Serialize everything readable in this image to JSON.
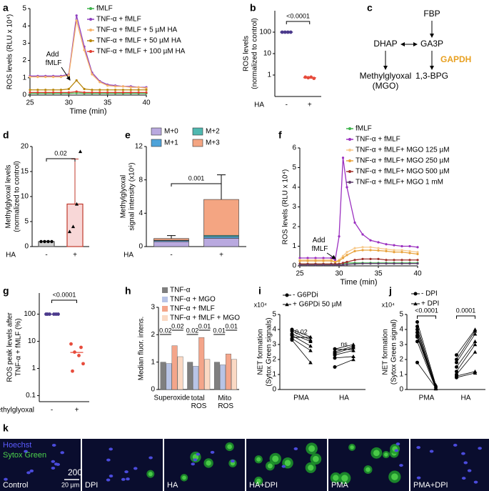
{
  "chart_data": [
    {
      "panel": "a",
      "type": "line",
      "xlabel": "Time (min)",
      "ylabel": [
        "ROS levels (RLU x 10⁴)"
      ],
      "xlim": [
        25,
        40
      ],
      "xticks": [
        25,
        30,
        35,
        40
      ],
      "ylim": [
        0,
        5
      ],
      "yticks": [
        0,
        1,
        2,
        3,
        4,
        5
      ],
      "x": [
        25,
        26,
        27,
        28,
        29,
        30,
        31,
        32,
        33,
        34,
        35,
        36,
        37,
        38,
        39,
        40
      ],
      "series": [
        {
          "name": "fMLF",
          "color": "#3cb44b",
          "values": [
            0.1,
            0.1,
            0.1,
            0.1,
            0.1,
            0.1,
            0.12,
            0.1,
            0.1,
            0.1,
            0.1,
            0.1,
            0.1,
            0.1,
            0.1,
            0.1
          ]
        },
        {
          "name": "TNF-α + fMLF",
          "color": "#8e3fbf",
          "values": [
            1.1,
            1.1,
            1.1,
            1.1,
            1.1,
            1.2,
            4.6,
            2.8,
            1.3,
            0.8,
            0.6,
            0.55,
            0.5,
            0.5,
            0.45,
            0.45
          ]
        },
        {
          "name": "TNF-α + fMLF + 5 µM HA",
          "color": "#f7b267",
          "values": [
            1.05,
            1.05,
            1.05,
            1.05,
            1.05,
            1.15,
            4.3,
            2.6,
            1.2,
            0.75,
            0.55,
            0.5,
            0.5,
            0.45,
            0.45,
            0.4
          ]
        },
        {
          "name": "TNF-α + fMLF + 50 µM HA",
          "color": "#b8860b",
          "values": [
            0.3,
            0.3,
            0.3,
            0.3,
            0.3,
            0.35,
            0.85,
            0.35,
            0.3,
            0.3,
            0.3,
            0.3,
            0.3,
            0.3,
            0.3,
            0.3
          ]
        },
        {
          "name": "TNF-α + fMLF + 100 µM HA",
          "color": "#e03c31",
          "values": [
            0.15,
            0.15,
            0.15,
            0.15,
            0.15,
            0.15,
            0.2,
            0.15,
            0.15,
            0.15,
            0.15,
            0.15,
            0.15,
            0.15,
            0.15,
            0.15
          ]
        }
      ],
      "annotation": "Add fMLF"
    },
    {
      "panel": "b",
      "type": "dot",
      "ylabel": [
        "ROS levels",
        "(normalized to control)"
      ],
      "xlabel": "HA",
      "categories": [
        "-",
        "+"
      ],
      "log_y": true,
      "ylim": [
        0.1,
        1000
      ],
      "yticks": [
        1,
        10,
        100
      ],
      "values": [
        [
          100,
          100,
          100,
          100
        ],
        [
          0.8,
          0.75,
          0.8,
          0.7
        ]
      ],
      "means": [
        100,
        0.75
      ],
      "colors": [
        "#4b3a8c",
        "#e74c3c"
      ],
      "annotation": "<0.0001"
    },
    {
      "panel": "d",
      "type": "bar",
      "ylabel": [
        "Methylglyoxal levels",
        "(normalized to control)"
      ],
      "xlabel": "HA",
      "categories": [
        "-",
        "+"
      ],
      "ylim": [
        0,
        20
      ],
      "yticks": [
        0,
        5,
        10,
        15,
        20
      ],
      "values": [
        1,
        8.5
      ],
      "errors": [
        0.1,
        9
      ],
      "points": [
        [
          1,
          1,
          1,
          1
        ],
        [
          3,
          4,
          8.5,
          19
        ]
      ],
      "colors": [
        "#d0d0d0",
        "#f8d7d7"
      ],
      "edge_colors": [
        "#555555",
        "#c0392b"
      ],
      "markers": [
        "circle",
        "triangle"
      ],
      "annotation": "0.02"
    },
    {
      "panel": "e",
      "type": "stacked_bar",
      "ylabel": [
        "Methylglyoxal",
        "signal intensity (x10⁶)"
      ],
      "xlabel": "HA",
      "categories": [
        "-",
        "+"
      ],
      "ylim": [
        0,
        12
      ],
      "yticks": [
        0,
        4,
        8,
        12
      ],
      "series": [
        {
          "name": "M+0",
          "color": "#b9a9df",
          "values": [
            0.6,
            1.0
          ]
        },
        {
          "name": "M+1",
          "color": "#4ea3d9",
          "values": [
            0.12,
            0.2
          ]
        },
        {
          "name": "M+2",
          "color": "#4fb8b0",
          "values": [
            0.05,
            0.15
          ]
        },
        {
          "name": "M+3",
          "color": "#f4a582",
          "values": [
            0.2,
            4.3
          ]
        }
      ],
      "errors": [
        0.35,
        2.95
      ],
      "annotation": "0.001"
    },
    {
      "panel": "f",
      "type": "line",
      "xlabel": "Time (min)",
      "ylabel": [
        "ROS levels (RLU x 10⁴)"
      ],
      "xlim": [
        25,
        40
      ],
      "xticks": [
        25,
        30,
        35,
        40
      ],
      "ylim": [
        0,
        6
      ],
      "yticks": [
        0,
        1,
        2,
        3,
        4,
        5,
        6
      ],
      "x": [
        25,
        26,
        27,
        28,
        29,
        29.5,
        30,
        30.5,
        31,
        32,
        33,
        34,
        35,
        36,
        37,
        38,
        39,
        40
      ],
      "series": [
        {
          "name": "fMLF",
          "color": "#3cb44b",
          "values": [
            0.1,
            0.1,
            0.1,
            0.1,
            0.1,
            0.1,
            0.1,
            0.12,
            0.15,
            0.15,
            0.15,
            0.15,
            0.15,
            0.15,
            0.15,
            0.15,
            0.15,
            0.15
          ]
        },
        {
          "name": "TNF-α + fMLF",
          "color": "#9b30c0",
          "values": [
            0.4,
            0.4,
            0.4,
            0.4,
            0.4,
            0.3,
            1.5,
            5.5,
            4.0,
            2.2,
            1.6,
            1.3,
            1.2,
            1.1,
            1.05,
            1.0,
            1.0,
            0.95
          ]
        },
        {
          "name": "TNF-α + fMLF+ MGO 125 µM",
          "color": "#f7c98b",
          "values": [
            0.3,
            0.3,
            0.3,
            0.3,
            0.3,
            0.2,
            0.3,
            0.5,
            0.7,
            0.9,
            0.95,
            0.95,
            0.9,
            0.85,
            0.8,
            0.8,
            0.75,
            0.7
          ]
        },
        {
          "name": "TNF-α + fMLF+ MGO 250 µM",
          "color": "#e8a33d",
          "values": [
            0.25,
            0.25,
            0.25,
            0.25,
            0.25,
            0.2,
            0.25,
            0.4,
            0.55,
            0.75,
            0.8,
            0.8,
            0.78,
            0.75,
            0.7,
            0.7,
            0.65,
            0.6
          ]
        },
        {
          "name": "TNF-α + fMLF+ MGO 500 µM",
          "color": "#a0302a",
          "values": [
            0.1,
            0.1,
            0.1,
            0.1,
            0.1,
            0.1,
            0.1,
            0.15,
            0.2,
            0.3,
            0.35,
            0.35,
            0.35,
            0.3,
            0.3,
            0.3,
            0.3,
            0.3
          ]
        },
        {
          "name": "TNF-α + fMLF+ MGO 1 mM",
          "color": "#5e3f6b",
          "values": [
            0.05,
            0.05,
            0.05,
            0.05,
            0.05,
            0.05,
            0.05,
            0.05,
            0.08,
            0.1,
            0.12,
            0.12,
            0.12,
            0.12,
            0.12,
            0.12,
            0.12,
            0.12
          ]
        }
      ],
      "annotation": "Add fMLF"
    },
    {
      "panel": "g",
      "type": "dot",
      "ylabel": [
        "ROS peak levels after",
        "TNF-α + fMLF (%)"
      ],
      "xlabel": "methylglyoxal",
      "categories": [
        "-",
        "+"
      ],
      "log_y": true,
      "ylim": [
        0.06,
        600
      ],
      "yticks": [
        0.1,
        1,
        10,
        100
      ],
      "values": [
        [
          100,
          100,
          100,
          100,
          100,
          100
        ],
        [
          8,
          6,
          4,
          3,
          1.5,
          0.8
        ]
      ],
      "means": [
        100,
        3.9
      ],
      "colors": [
        "#4b3a8c",
        "#e74c3c"
      ],
      "annotation": "<0.0001"
    },
    {
      "panel": "h",
      "type": "grouped_bar",
      "ylabel": [
        "Median fluor. intens."
      ],
      "categories": [
        "Superoxide",
        "total ROS",
        "Mito ROS"
      ],
      "ylim": [
        0,
        3
      ],
      "yticks": [
        0,
        1,
        2,
        3
      ],
      "series": [
        {
          "name": "TNF-α",
          "color": "#7f7f7f",
          "values": [
            1,
            1,
            1
          ]
        },
        {
          "name": "TNF-α + MGO",
          "color": "#b8c4e6",
          "values": [
            0.95,
            0.85,
            0.9
          ]
        },
        {
          "name": "TNF-α + fMLF",
          "color": "#f4a58a",
          "values": [
            1.6,
            1.9,
            1.3
          ]
        },
        {
          "name": "TNF-α + fMLF + MGO",
          "color": "#fbd9c4",
          "values": [
            1.2,
            1.1,
            1.1
          ]
        }
      ],
      "annotations": [
        "0.02",
        "0.02",
        "0.02",
        "0.01",
        "0.01",
        "0.01"
      ]
    },
    {
      "panel": "i",
      "type": "paired",
      "ylabel": [
        "NET formation",
        "(Sytox Green signals)"
      ],
      "y_multiplier": "x10⁴",
      "categories": [
        "PMA",
        "HA"
      ],
      "ylim": [
        0,
        5
      ],
      "yticks": [
        0,
        1,
        2,
        3,
        4,
        5
      ],
      "series": [
        {
          "name": "- G6PDi",
          "marker": "circle",
          "values": [
            [
              4.0,
              3.9,
              3.7,
              3.6,
              3.4,
              3.3
            ],
            [
              2.7,
              2.5,
              2.4,
              2.3,
              2.1,
              1.5
            ]
          ]
        },
        {
          "name": "+ G6PDi 50 µM",
          "marker": "triangle",
          "values": [
            [
              3.5,
              3.3,
              3.2,
              2.9,
              2.6,
              1.8
            ],
            [
              3.0,
              2.9,
              2.8,
              2.6,
              2.2,
              2.0
            ]
          ]
        }
      ],
      "annotations": [
        "0.02",
        "ns"
      ]
    },
    {
      "panel": "j",
      "type": "paired",
      "ylabel": [
        "NET formation",
        "(Sytox Green signal)"
      ],
      "y_multiplier": "x10⁴",
      "categories": [
        "PMA",
        "HA"
      ],
      "ylim": [
        0,
        5
      ],
      "yticks": [
        0,
        1,
        2,
        3,
        4,
        5
      ],
      "series": [
        {
          "name": "- DPI",
          "marker": "circle",
          "values": [
            [
              4.5,
              4.2,
              4.0,
              3.8,
              3.6,
              3.5,
              3.2,
              1.8
            ],
            [
              2.3,
              2.0,
              1.8,
              1.5,
              1.2,
              1.0,
              0.9,
              0.8
            ]
          ]
        },
        {
          "name": "+ DPI",
          "marker": "triangle",
          "values": [
            [
              0.3,
              0.2,
              0.1,
              0.1,
              0.2,
              0.1,
              0.05,
              0.1
            ],
            [
              4.0,
              3.9,
              3.7,
              3.2,
              3.0,
              2.5,
              1.2,
              1.1
            ]
          ]
        }
      ],
      "annotations": [
        "<0.0001",
        "0.0001"
      ]
    }
  ],
  "diagram": {
    "panel": "c",
    "nodes": [
      "FBP",
      "DHAP",
      "GA3P",
      "GAPDH",
      "Methylglyoxal",
      "(MGO)",
      "1,3-BPG"
    ]
  },
  "micrographs": {
    "panel": "k",
    "stains": [
      "Hoechst",
      "Sytox Green"
    ],
    "conditions": [
      "Control",
      "DPI",
      "HA",
      "HA+DPI",
      "PMA",
      "PMA+DPI"
    ],
    "scale_bar": "20 µm",
    "overlay_text": "200"
  }
}
